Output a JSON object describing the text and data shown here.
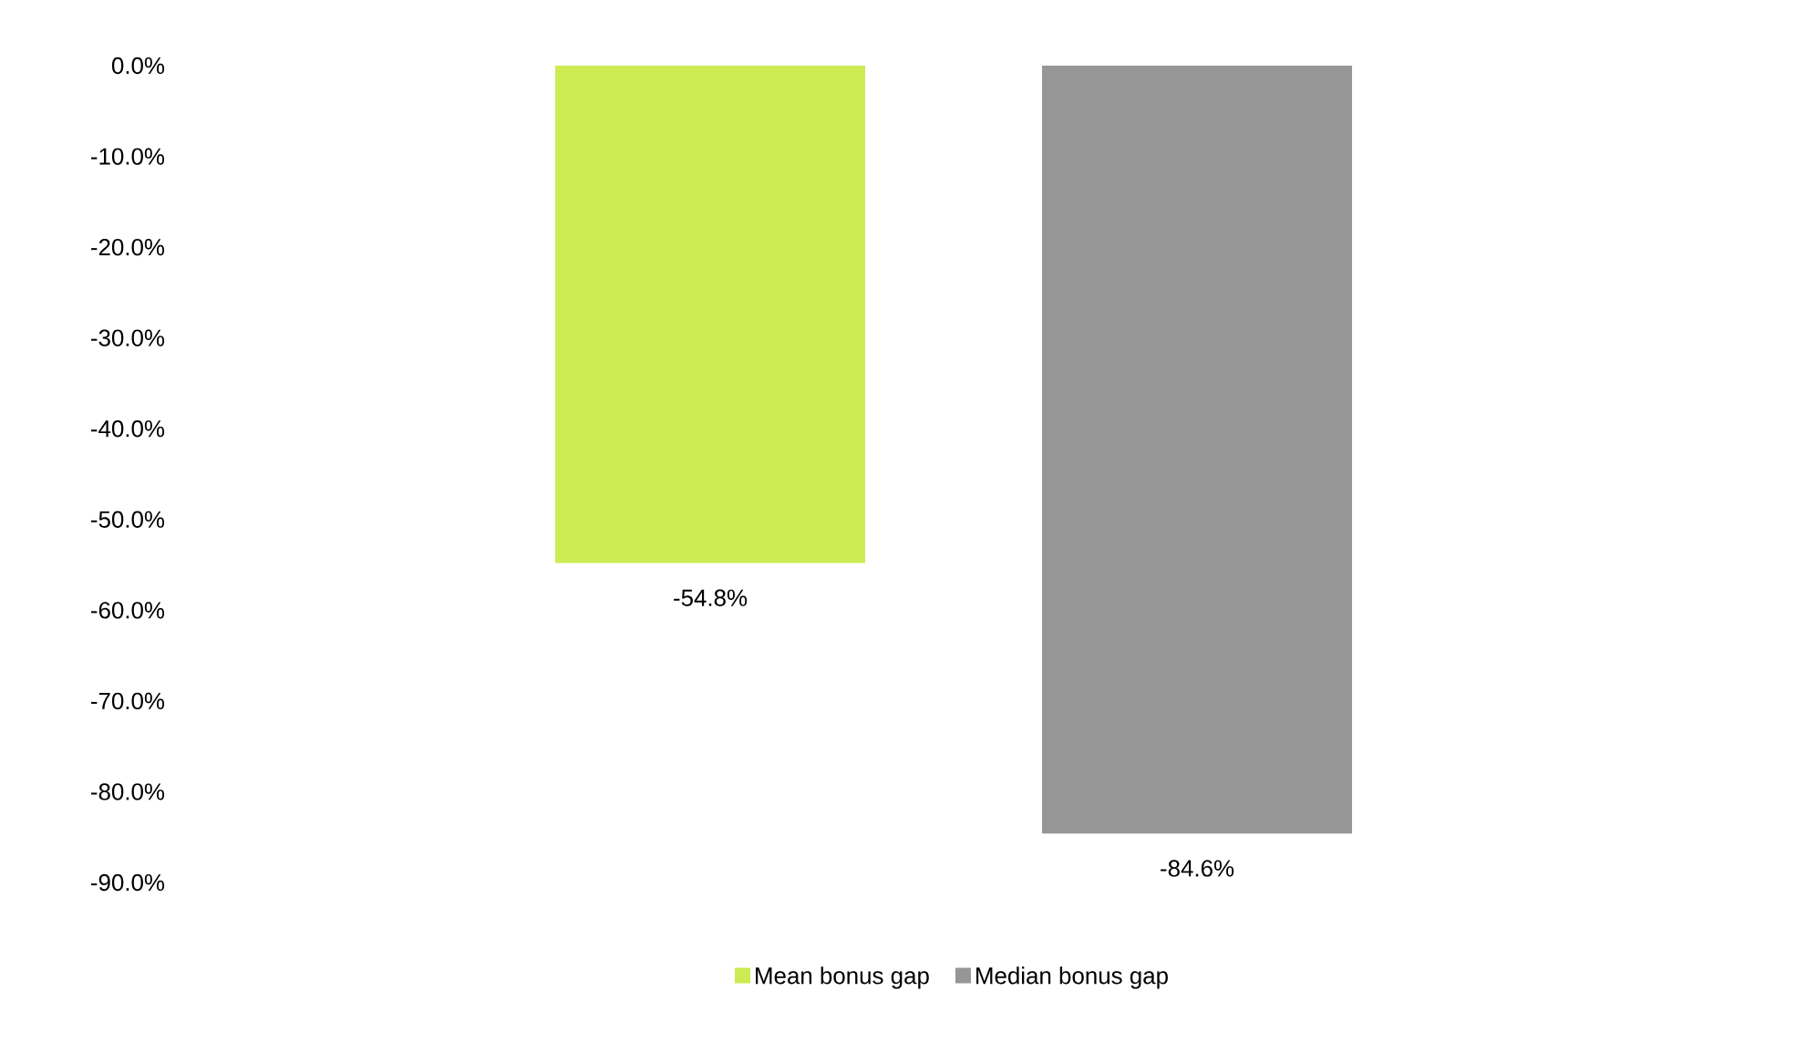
{
  "chart_data": {
    "type": "bar",
    "categories": [
      null
    ],
    "series": [
      {
        "name": "Mean bonus gap",
        "color": "#cdeb52",
        "values": [
          -54.8
        ],
        "value_labels": [
          "-54.8%"
        ]
      },
      {
        "name": "Median bonus gap",
        "color": "#969696",
        "values": [
          -84.6
        ],
        "value_labels": [
          "-84.6%"
        ]
      }
    ],
    "ylim": [
      -90,
      0
    ],
    "yticks": [
      {
        "value": 0,
        "label": "0.0%"
      },
      {
        "value": -10,
        "label": "-10.0%"
      },
      {
        "value": -20,
        "label": "-20.0%"
      },
      {
        "value": -30,
        "label": "-30.0%"
      },
      {
        "value": -40,
        "label": "-40.0%"
      },
      {
        "value": -50,
        "label": "-50.0%"
      },
      {
        "value": -60,
        "label": "-60.0%"
      },
      {
        "value": -70,
        "label": "-70.0%"
      },
      {
        "value": -80,
        "label": "-80.0%"
      },
      {
        "value": -90,
        "label": "-90.0%"
      }
    ],
    "legend": "bottom"
  }
}
